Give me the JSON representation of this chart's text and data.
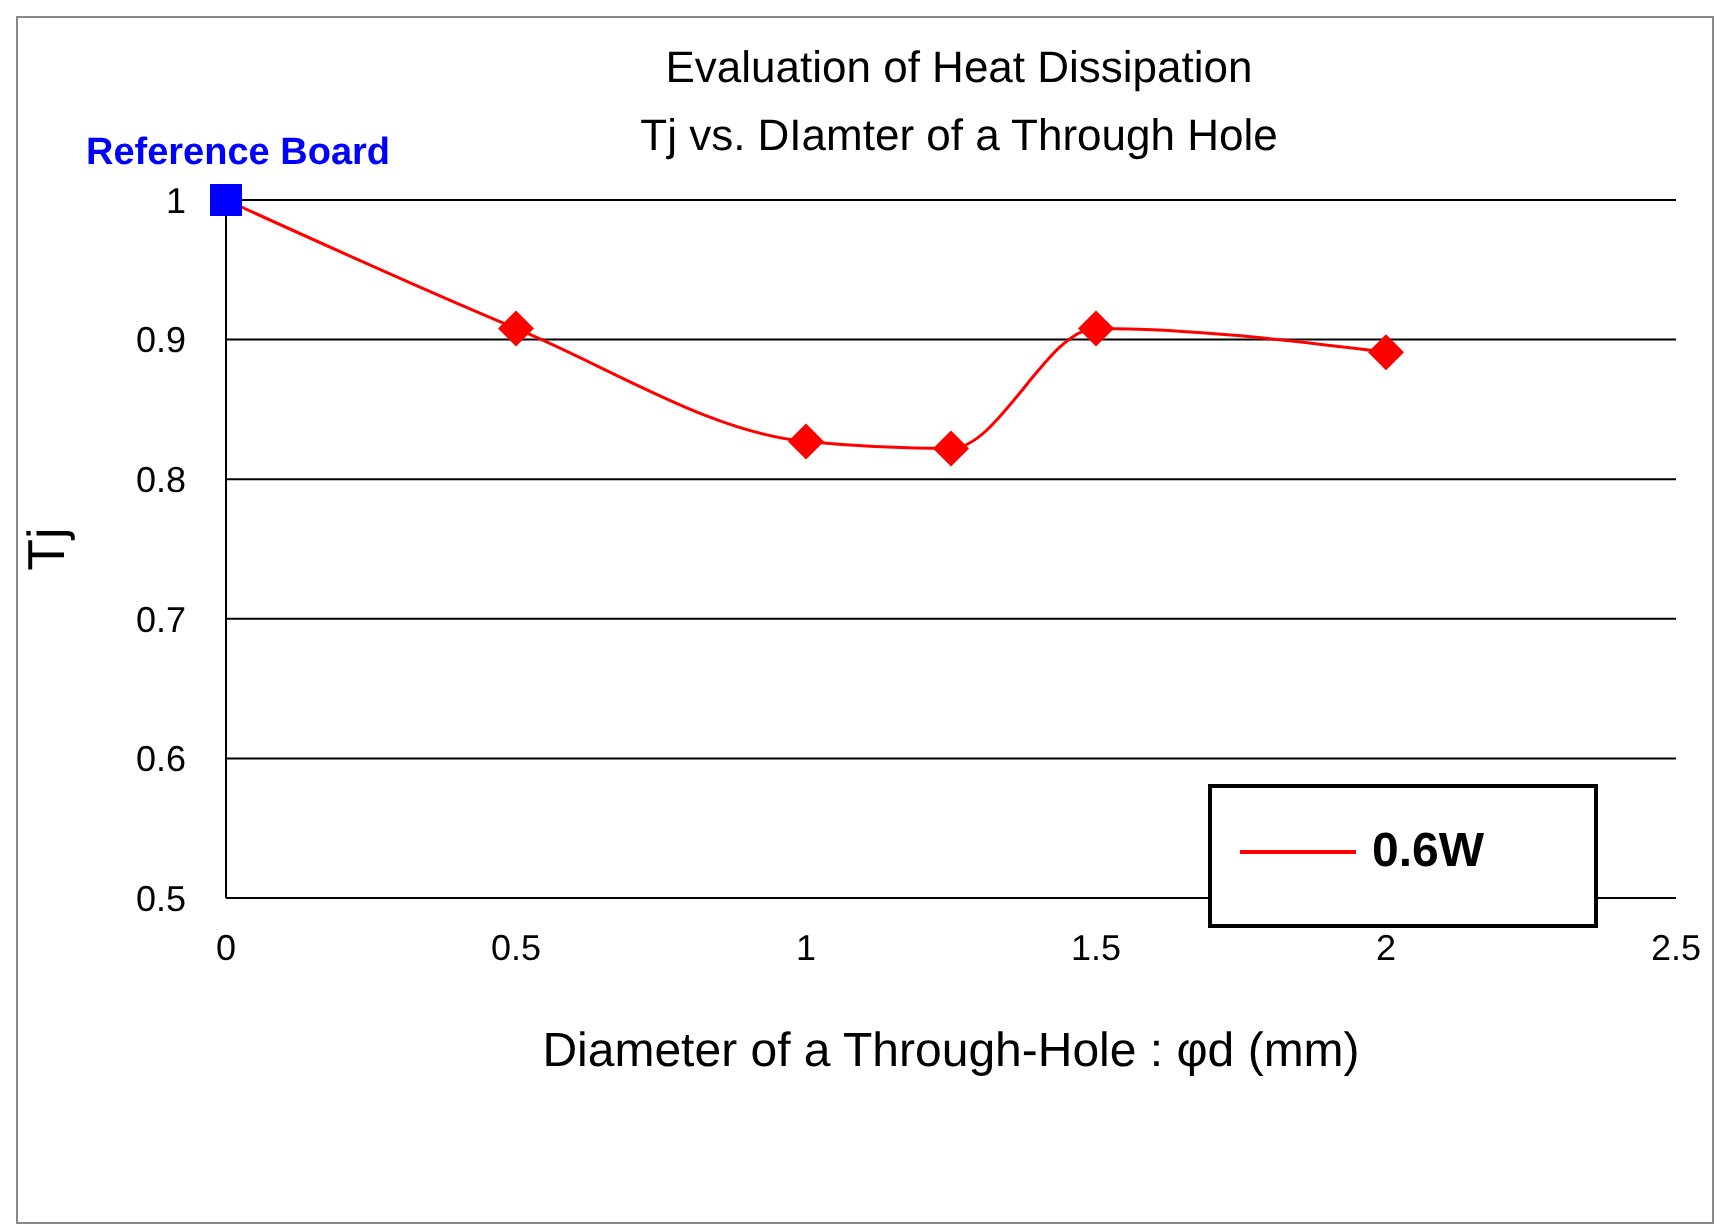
{
  "chart_data": {
    "type": "line",
    "title": "Evaluation of Heat Dissipation",
    "subtitle": "Tj vs. DIamter of a Through Hole",
    "xlabel": "Diameter of a Through-Hole : φd (mm)",
    "ylabel": "Tj",
    "annotations": [
      {
        "text": "Reference Board",
        "x": 0,
        "y": 1
      }
    ],
    "series": [
      {
        "name": "0.6W",
        "color": "#ff0000",
        "marker": "none",
        "x": [
          0,
          0.5,
          1,
          1.25,
          1.5,
          2
        ],
        "values": [
          1,
          0.908,
          0.827,
          0.822,
          0.908,
          0.891
        ]
      },
      {
        "type": "scatter",
        "color": "#ff0000",
        "marker": "diamond",
        "x": [
          0.5,
          1,
          1.25,
          1.5,
          2
        ],
        "values": [
          0.908,
          0.827,
          0.822,
          0.908,
          0.891
        ]
      },
      {
        "type": "scatter",
        "color": "#0000ff",
        "marker": "square",
        "x": [
          0
        ],
        "values": [
          1
        ]
      }
    ],
    "xlim": [
      0,
      2.5
    ],
    "xticks": [
      0,
      0.5,
      1,
      1.5,
      2,
      2.5
    ],
    "ylim": [
      0.5,
      1
    ],
    "yticks": [
      0.5,
      0.6,
      0.7,
      0.8,
      0.9,
      1
    ],
    "grid": "y",
    "legend": "bottom right"
  }
}
